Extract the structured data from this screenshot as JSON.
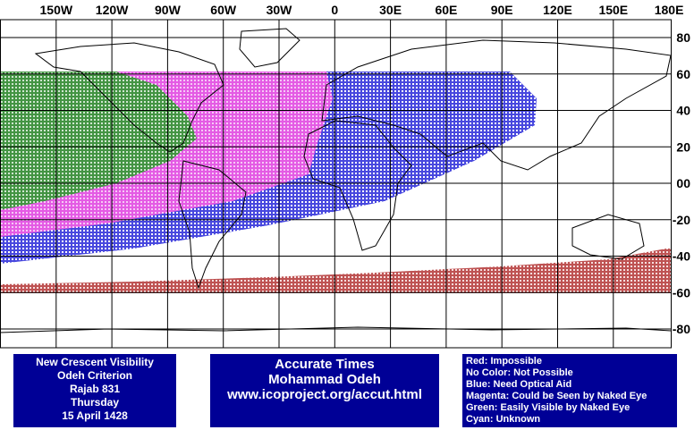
{
  "map": {
    "lon_labels": [
      "150W",
      "120W",
      "90W",
      "60W",
      "30W",
      "0",
      "30E",
      "60E",
      "90E",
      "120E",
      "150E",
      "180E"
    ],
    "lat_labels": [
      "80",
      "60",
      "40",
      "20",
      "00",
      "-20",
      "-40",
      "-60",
      "-80"
    ]
  },
  "boxes": {
    "left": [
      "New Crescent Visibility",
      "Odeh Criterion",
      "Rajab 831",
      "Thursday",
      "15 April 1428"
    ],
    "center": [
      "Accurate Times",
      "Mohammad Odeh",
      "www.icoproject.org/accut.html"
    ],
    "legend": [
      "Red: Impossible",
      "No Color: Not Possible",
      "Blue: Need Optical Aid",
      "Magenta: Could be Seen by Naked Eye",
      "Green: Easily Visible by Naked Eye",
      "Cyan: Unknown"
    ]
  }
}
